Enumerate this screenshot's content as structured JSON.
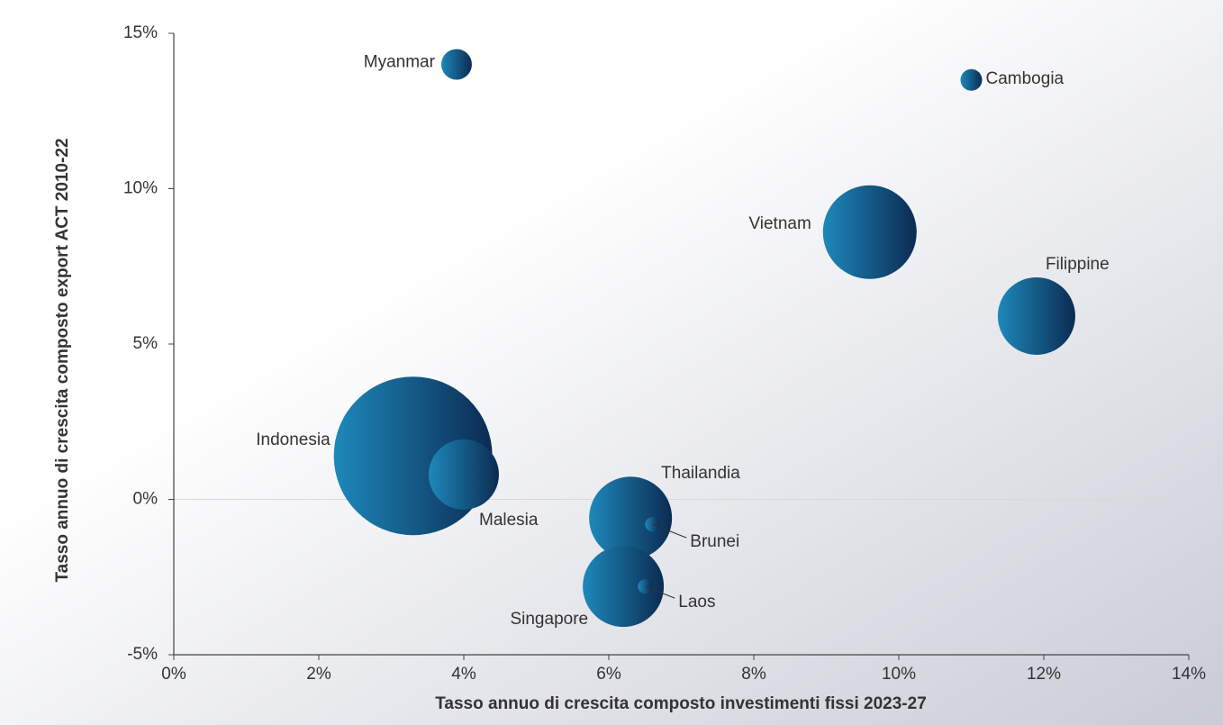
{
  "chart_data": {
    "type": "bubble",
    "x_label": "Tasso annuo di crescita composto investimenti fissi 2023-27",
    "y_label": "Tasso annuo di crescita composto export ACT 2010-22",
    "xlim": [
      0,
      14
    ],
    "xticks": [
      {
        "value": 0,
        "label": "0%"
      },
      {
        "value": 2,
        "label": "2%"
      },
      {
        "value": 4,
        "label": "4%"
      },
      {
        "value": 6,
        "label": "6%"
      },
      {
        "value": 8,
        "label": "8%"
      },
      {
        "value": 10,
        "label": "10%"
      },
      {
        "value": 12,
        "label": "12%"
      },
      {
        "value": 14,
        "label": "14%"
      }
    ],
    "ylim": [
      -5,
      15
    ],
    "yticks": [
      {
        "value": -5,
        "label": "-5%"
      },
      {
        "value": 0,
        "label": "0%"
      },
      {
        "value": 5,
        "label": "5%"
      },
      {
        "value": 10,
        "label": "10%"
      },
      {
        "value": 15,
        "label": "15%"
      }
    ],
    "color": [
      "#1e88bb",
      "#0b2b52"
    ],
    "points": [
      {
        "name": "Myanmar",
        "x": 3.9,
        "y": 14.0,
        "size": 17
      },
      {
        "name": "Cambogia",
        "x": 11.0,
        "y": 13.5,
        "size": 12
      },
      {
        "name": "Vietnam",
        "x": 9.6,
        "y": 8.6,
        "size": 52
      },
      {
        "name": "Filippine",
        "x": 11.9,
        "y": 5.9,
        "size": 43
      },
      {
        "name": "Indonesia",
        "x": 3.3,
        "y": 1.4,
        "size": 88
      },
      {
        "name": "Malesia",
        "x": 4.0,
        "y": 0.8,
        "size": 39
      },
      {
        "name": "Thailandia",
        "x": 6.3,
        "y": -0.6,
        "size": 46
      },
      {
        "name": "Brunei",
        "x": 6.6,
        "y": -0.8,
        "size": 8
      },
      {
        "name": "Singapore",
        "x": 6.2,
        "y": -2.8,
        "size": 45
      },
      {
        "name": "Laos",
        "x": 6.5,
        "y": -2.8,
        "size": 8
      }
    ]
  }
}
